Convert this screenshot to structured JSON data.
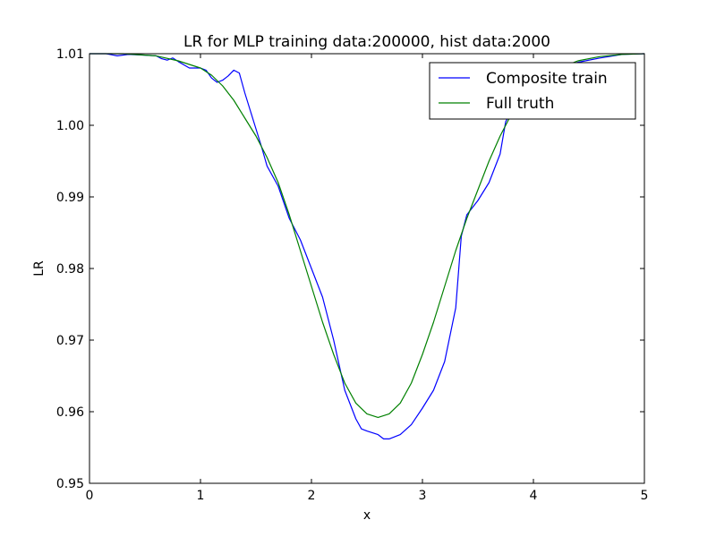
{
  "chart_data": {
    "type": "line",
    "title": "LR for MLP training data:200000, hist data:2000",
    "xlabel": "x",
    "ylabel": "LR",
    "xlim": [
      0,
      5
    ],
    "ylim": [
      0.95,
      1.01
    ],
    "x_ticks": [
      0,
      1,
      2,
      3,
      4,
      5
    ],
    "x_tick_labels": [
      "0",
      "1",
      "2",
      "3",
      "4",
      "5"
    ],
    "y_ticks": [
      0.95,
      0.96,
      0.97,
      0.98,
      0.99,
      1.0,
      1.01
    ],
    "y_tick_labels": [
      "0.95",
      "0.96",
      "0.97",
      "0.98",
      "0.99",
      "1.00",
      "1.01"
    ],
    "grid": false,
    "legend_position": "top-right",
    "series": [
      {
        "name": "Composite train",
        "color": "#0000ff",
        "points": [
          [
            0.0,
            1.01
          ],
          [
            0.15,
            1.01
          ],
          [
            0.25,
            1.0097
          ],
          [
            0.35,
            1.0099
          ],
          [
            0.5,
            1.0098
          ],
          [
            0.6,
            1.0097
          ],
          [
            0.65,
            1.0093
          ],
          [
            0.7,
            1.0091
          ],
          [
            0.75,
            1.0094
          ],
          [
            0.8,
            1.0089
          ],
          [
            0.9,
            1.008
          ],
          [
            1.0,
            1.008
          ],
          [
            1.05,
            1.0077
          ],
          [
            1.1,
            1.0066
          ],
          [
            1.15,
            1.006
          ],
          [
            1.2,
            1.0063
          ],
          [
            1.25,
            1.0069
          ],
          [
            1.3,
            1.0077
          ],
          [
            1.35,
            1.0073
          ],
          [
            1.4,
            1.0045
          ],
          [
            1.45,
            1.002
          ],
          [
            1.5,
            0.9995
          ],
          [
            1.55,
            0.997
          ],
          [
            1.6,
            0.9943
          ],
          [
            1.7,
            0.9915
          ],
          [
            1.8,
            0.987
          ],
          [
            1.9,
            0.984
          ],
          [
            2.0,
            0.98
          ],
          [
            2.1,
            0.976
          ],
          [
            2.2,
            0.97
          ],
          [
            2.3,
            0.963
          ],
          [
            2.4,
            0.959
          ],
          [
            2.45,
            0.9576
          ],
          [
            2.5,
            0.9573
          ],
          [
            2.6,
            0.9568
          ],
          [
            2.65,
            0.9562
          ],
          [
            2.7,
            0.9562
          ],
          [
            2.8,
            0.9568
          ],
          [
            2.9,
            0.9582
          ],
          [
            3.0,
            0.9605
          ],
          [
            3.1,
            0.963
          ],
          [
            3.2,
            0.967
          ],
          [
            3.3,
            0.9745
          ],
          [
            3.35,
            0.9845
          ],
          [
            3.4,
            0.9875
          ],
          [
            3.5,
            0.9895
          ],
          [
            3.6,
            0.992
          ],
          [
            3.7,
            0.996
          ],
          [
            3.75,
            1.0005
          ],
          [
            3.8,
            1.002
          ],
          [
            3.9,
            1.0045
          ],
          [
            4.0,
            1.0065
          ],
          [
            4.2,
            1.008
          ],
          [
            4.4,
            1.0088
          ],
          [
            4.6,
            1.0094
          ],
          [
            4.8,
            1.0099
          ],
          [
            5.0,
            1.01
          ]
        ]
      },
      {
        "name": "Full truth",
        "color": "#008000",
        "points": [
          [
            0.0,
            1.01
          ],
          [
            0.3,
            1.01
          ],
          [
            0.6,
            1.0097
          ],
          [
            0.8,
            1.009
          ],
          [
            1.0,
            1.008
          ],
          [
            1.1,
            1.007
          ],
          [
            1.2,
            1.0055
          ],
          [
            1.3,
            1.0035
          ],
          [
            1.4,
            1.001
          ],
          [
            1.5,
            0.9985
          ],
          [
            1.6,
            0.9955
          ],
          [
            1.7,
            0.992
          ],
          [
            1.8,
            0.9875
          ],
          [
            1.9,
            0.9825
          ],
          [
            2.0,
            0.9775
          ],
          [
            2.1,
            0.9725
          ],
          [
            2.2,
            0.968
          ],
          [
            2.3,
            0.964
          ],
          [
            2.4,
            0.9612
          ],
          [
            2.5,
            0.9597
          ],
          [
            2.6,
            0.9592
          ],
          [
            2.7,
            0.9597
          ],
          [
            2.8,
            0.9612
          ],
          [
            2.9,
            0.964
          ],
          [
            3.0,
            0.968
          ],
          [
            3.1,
            0.9725
          ],
          [
            3.2,
            0.9775
          ],
          [
            3.3,
            0.9825
          ],
          [
            3.4,
            0.987
          ],
          [
            3.5,
            0.991
          ],
          [
            3.6,
            0.995
          ],
          [
            3.7,
            0.9985
          ],
          [
            3.8,
            1.0015
          ],
          [
            4.0,
            1.0055
          ],
          [
            4.2,
            1.0078
          ],
          [
            4.4,
            1.009
          ],
          [
            4.6,
            1.0096
          ],
          [
            4.8,
            1.0099
          ],
          [
            5.0,
            1.01
          ]
        ]
      }
    ]
  }
}
